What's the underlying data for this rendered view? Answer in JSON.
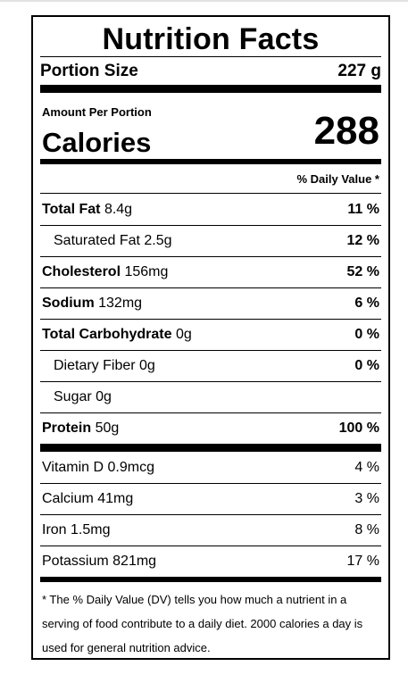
{
  "title": "Nutrition Facts",
  "portion": {
    "label": "Portion Size",
    "value": "227 g"
  },
  "amount_label": "Amount Per Portion",
  "calories": {
    "label": "Calories",
    "value": "288"
  },
  "dv_header": "% Daily Value *",
  "nutrients": [
    {
      "name": "Total Fat",
      "amount": "8.4g",
      "pct": "11 %"
    },
    {
      "name": "Saturated Fat",
      "amount": "2.5g",
      "pct": "12 %"
    },
    {
      "name": "Cholesterol",
      "amount": "156mg",
      "pct": "52 %"
    },
    {
      "name": "Sodium",
      "amount": "132mg",
      "pct": "6 %"
    },
    {
      "name": "Total Carbohydrate",
      "amount": "0g",
      "pct": "0 %"
    },
    {
      "name": "Dietary Fiber",
      "amount": "0g",
      "pct": "0 %"
    },
    {
      "name": "Sugar",
      "amount": "0g",
      "pct": ""
    },
    {
      "name": "Protein",
      "amount": "50g",
      "pct": "100 %"
    }
  ],
  "vitamins": [
    {
      "name": "Vitamin D",
      "amount": "0.9mcg",
      "pct": "4 %"
    },
    {
      "name": "Calcium",
      "amount": "41mg",
      "pct": "3 %"
    },
    {
      "name": "Iron",
      "amount": "1.5mg",
      "pct": "8 %"
    },
    {
      "name": "Potassium",
      "amount": "821mg",
      "pct": "17 %"
    }
  ],
  "footnote": "* The % Daily Value (DV) tells you how much a nutrient in a serving of food contribute to a daily diet. 2000 calories a day is used for general nutrition advice."
}
